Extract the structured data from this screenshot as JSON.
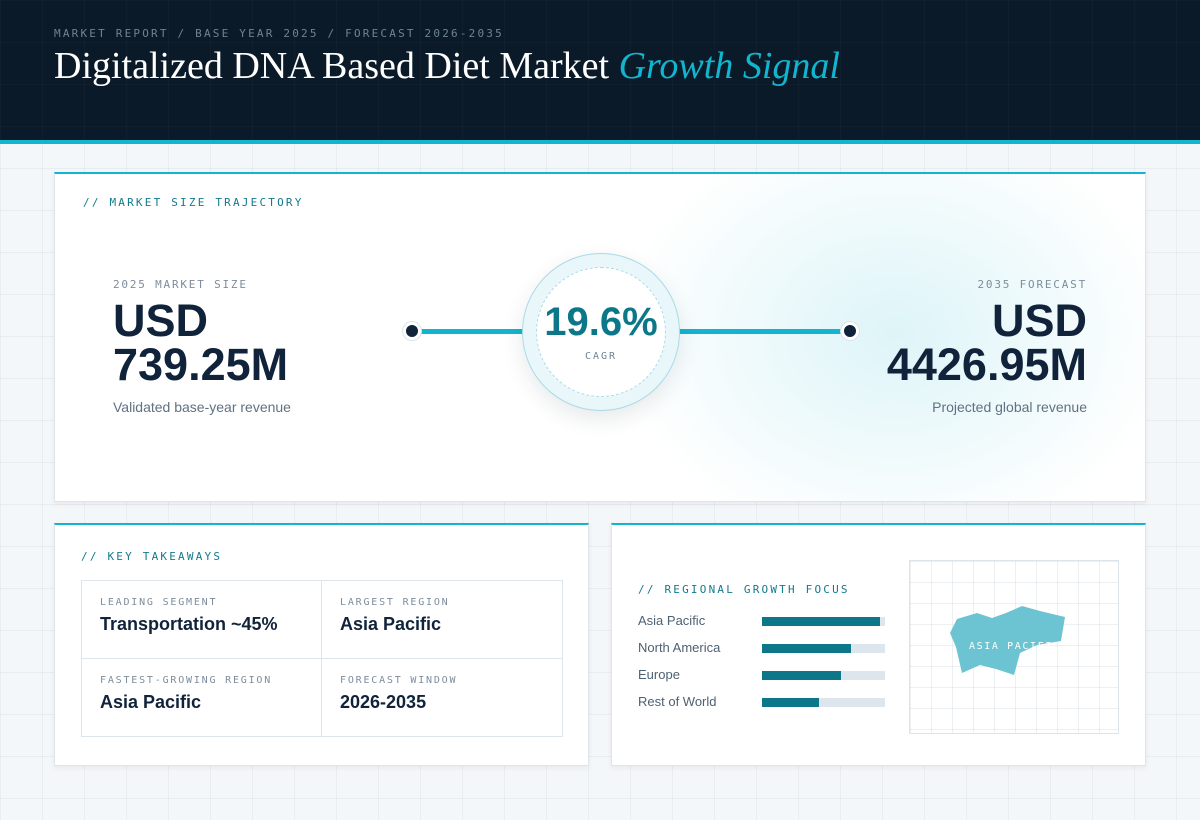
{
  "header": {
    "breadcrumb": "MARKET REPORT / BASE YEAR 2025 / FORECAST 2026-2035",
    "title_main": "Digitalized DNA Based Diet Market",
    "title_accent": "Growth Signal"
  },
  "trajectory": {
    "section_label": "// MARKET SIZE TRAJECTORY",
    "start": {
      "label": "2025 MARKET SIZE",
      "value_line1": "USD",
      "value_line2": "739.25M",
      "note": "Validated base-year revenue"
    },
    "cagr": {
      "value": "19.6%",
      "label": "CAGR"
    },
    "end": {
      "label": "2035 FORECAST",
      "value_line1": "USD",
      "value_line2": "4426.95M",
      "note": "Projected global revenue"
    }
  },
  "takeaways": {
    "section_label": "// KEY TAKEAWAYS",
    "items": [
      {
        "label": "LEADING SEGMENT",
        "value": "Transportation ~45%"
      },
      {
        "label": "LARGEST REGION",
        "value": "Asia Pacific"
      },
      {
        "label": "FASTEST-GROWING REGION",
        "value": "Asia Pacific"
      },
      {
        "label": "FORECAST WINDOW",
        "value": "2026-2035"
      }
    ]
  },
  "regional": {
    "section_label": "// REGIONAL GROWTH FOCUS",
    "regions": [
      {
        "name": "Asia Pacific",
        "share": 0.96
      },
      {
        "name": "North America",
        "share": 0.72
      },
      {
        "name": "Europe",
        "share": 0.64
      },
      {
        "name": "Rest of World",
        "share": 0.46
      }
    ],
    "map_label": "ASIA PACIFIC",
    "colors": {
      "bar": "#0c7789",
      "track": "#dde6ec",
      "map_region": "#6cc3d1"
    }
  },
  "colors": {
    "accent": "#12b5cf",
    "navy": "#0b1a28",
    "teal": "#0c7789"
  }
}
